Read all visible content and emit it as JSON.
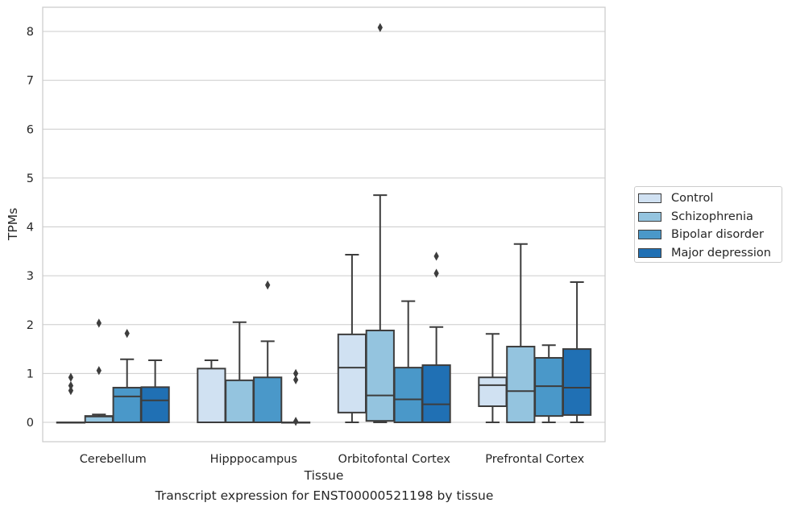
{
  "caption": "Transcript expression for ENST00000521198 by tissue",
  "chart_data": {
    "type": "box",
    "xlabel": "Tissue",
    "ylabel": "TPMs",
    "ylim": [
      -0.4,
      8.5
    ],
    "yticks": [
      0,
      1,
      2,
      3,
      4,
      5,
      6,
      7,
      8
    ],
    "grid": true,
    "legend_position": "right",
    "categories": [
      "Cerebellum",
      "Hipppocampus",
      "Orbitofontal Cortex",
      "Prefrontal Cortex"
    ],
    "series": [
      {
        "name": "Control",
        "color": "#d0e1f2",
        "boxes": [
          {
            "min": 0,
            "q1": 0,
            "median": 0,
            "q3": 0,
            "max": 0,
            "outliers": [
              0.65,
              0.75,
              0.92
            ]
          },
          {
            "min": 0,
            "q1": 0,
            "median": 0,
            "q3": 1.1,
            "max": 1.27,
            "outliers": []
          },
          {
            "min": 0,
            "q1": 0.2,
            "median": 1.12,
            "q3": 1.8,
            "max": 3.43,
            "outliers": []
          },
          {
            "min": 0,
            "q1": 0.33,
            "median": 0.76,
            "q3": 0.92,
            "max": 1.81,
            "outliers": []
          }
        ]
      },
      {
        "name": "Schizophrenia",
        "color": "#94c4df",
        "boxes": [
          {
            "min": 0,
            "q1": 0,
            "median": 0.12,
            "q3": 0.13,
            "max": 0.16,
            "outliers": [
              1.06,
              2.03
            ]
          },
          {
            "min": 0,
            "q1": 0,
            "median": 0,
            "q3": 0.86,
            "max": 2.05,
            "outliers": []
          },
          {
            "min": 0,
            "q1": 0.03,
            "median": 0.55,
            "q3": 1.88,
            "max": 4.65,
            "outliers": [
              8.08
            ]
          },
          {
            "min": 0,
            "q1": 0,
            "median": 0.64,
            "q3": 1.55,
            "max": 3.65,
            "outliers": []
          }
        ]
      },
      {
        "name": "Bipolar disorder",
        "color": "#4a98c9",
        "boxes": [
          {
            "min": 0,
            "q1": 0,
            "median": 0.53,
            "q3": 0.71,
            "max": 1.29,
            "outliers": [
              1.82
            ]
          },
          {
            "min": 0,
            "q1": 0,
            "median": 0,
            "q3": 0.92,
            "max": 1.66,
            "outliers": [
              2.81
            ]
          },
          {
            "min": 0,
            "q1": 0,
            "median": 0.47,
            "q3": 1.12,
            "max": 2.48,
            "outliers": []
          },
          {
            "min": 0,
            "q1": 0.13,
            "median": 0.74,
            "q3": 1.32,
            "max": 1.58,
            "outliers": []
          }
        ]
      },
      {
        "name": "Major depression",
        "color": "#2070b4",
        "boxes": [
          {
            "min": 0,
            "q1": 0,
            "median": 0.45,
            "q3": 0.72,
            "max": 1.27,
            "outliers": []
          },
          {
            "min": 0,
            "q1": 0,
            "median": 0,
            "q3": 0,
            "max": 0,
            "outliers": [
              0.02,
              0.87,
              1.0
            ]
          },
          {
            "min": 0,
            "q1": 0,
            "median": 0.37,
            "q3": 1.17,
            "max": 1.95,
            "outliers": [
              3.05,
              3.4
            ]
          },
          {
            "min": 0,
            "q1": 0.15,
            "median": 0.71,
            "q3": 1.5,
            "max": 2.87,
            "outliers": []
          }
        ]
      }
    ]
  }
}
